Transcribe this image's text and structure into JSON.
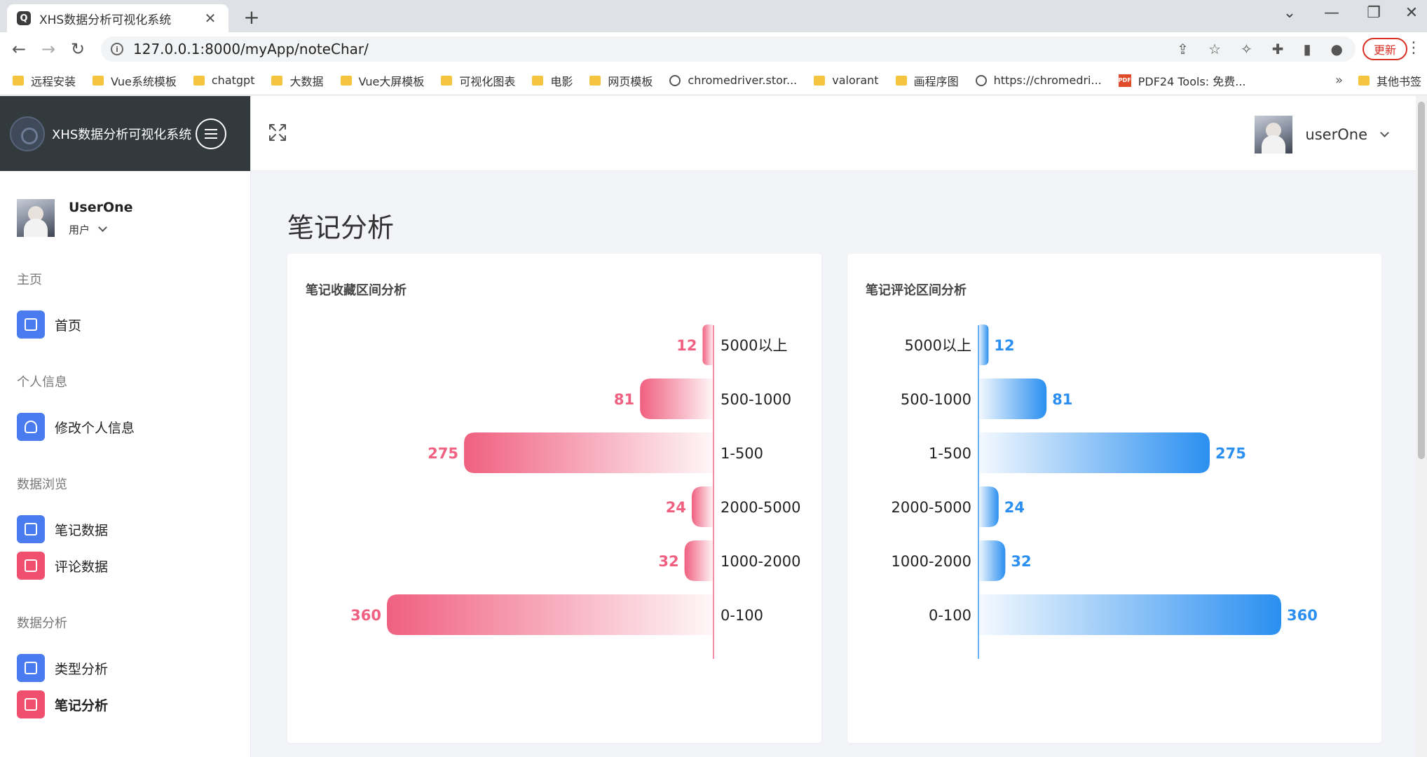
{
  "browser": {
    "tab_title": "XHS数据分析可视化系统",
    "tab_favicon": "Q",
    "url": "127.0.0.1:8000/myApp/noteChar/",
    "update_label": "更新",
    "bookmarks": [
      {
        "label": "远程安装",
        "icon": "folder"
      },
      {
        "label": "Vue系统模板",
        "icon": "folder"
      },
      {
        "label": "chatgpt",
        "icon": "folder"
      },
      {
        "label": "大数据",
        "icon": "folder"
      },
      {
        "label": "Vue大屏模板",
        "icon": "folder"
      },
      {
        "label": "可视化图表",
        "icon": "folder"
      },
      {
        "label": "电影",
        "icon": "folder"
      },
      {
        "label": "网页模板",
        "icon": "folder"
      },
      {
        "label": "chromedriver.stor...",
        "icon": "globe"
      },
      {
        "label": "valorant",
        "icon": "folder"
      },
      {
        "label": "画程序图",
        "icon": "folder"
      },
      {
        "label": "https://chromedri...",
        "icon": "globe"
      },
      {
        "label": "PDF24 Tools: 免费...",
        "icon": "pdf"
      }
    ],
    "bookmarks_more": "»",
    "other_bookmarks": "其他书签"
  },
  "app": {
    "brand_name": "XHS数据分析可视化系统",
    "user_name": "UserOne",
    "user_role": "用户",
    "top_user_name": "userOne",
    "page_title": "笔记分析"
  },
  "sidebar": {
    "sections": [
      {
        "title": "主页",
        "items": [
          {
            "label": "首页",
            "icon": "home-icon",
            "color": "#4a7cf0"
          }
        ]
      },
      {
        "title": "个人信息",
        "items": [
          {
            "label": "修改个人信息",
            "icon": "user-icon",
            "color": "#4a7cf0"
          }
        ]
      },
      {
        "title": "数据浏览",
        "items": [
          {
            "label": "笔记数据",
            "icon": "note-icon",
            "color": "#4a7cf0"
          },
          {
            "label": "评论数据",
            "icon": "comment-icon",
            "color": "#f0506e"
          }
        ]
      },
      {
        "title": "数据分析",
        "items": [
          {
            "label": "类型分析",
            "icon": "window-icon",
            "color": "#4a7cf0"
          },
          {
            "label": "笔记分析",
            "icon": "chart-icon",
            "color": "#f0506e",
            "active": true
          }
        ]
      }
    ]
  },
  "chart_data": [
    {
      "type": "bar",
      "orientation": "horizontal",
      "title": "笔记收藏区间分析",
      "categories": [
        "5000以上",
        "500-1000",
        "1-500",
        "2000-5000",
        "1000-2000",
        "0-100"
      ],
      "values": [
        12,
        81,
        275,
        24,
        32,
        360
      ],
      "direction": "leftward",
      "color": "#f06080"
    },
    {
      "type": "bar",
      "orientation": "horizontal",
      "title": "笔记评论区间分析",
      "categories": [
        "5000以上",
        "500-1000",
        "1-500",
        "2000-5000",
        "1000-2000",
        "0-100"
      ],
      "values": [
        12,
        81,
        275,
        24,
        32,
        360
      ],
      "direction": "rightward",
      "color": "#2a8ff0"
    }
  ]
}
